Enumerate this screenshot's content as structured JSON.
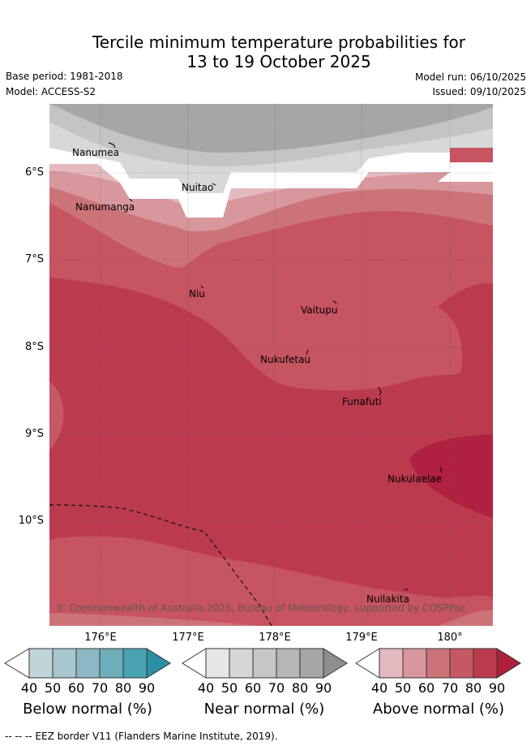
{
  "title": {
    "line1": "Tercile minimum temperature probabilities for",
    "line2": "13 to 19 October 2025"
  },
  "meta": {
    "base_period": "Base period: 1981-2018",
    "model": "Model: ACCESS-S2",
    "model_run": "Model run: 06/10/2025",
    "issued": "Issued: 09/10/2025"
  },
  "map": {
    "lat_labels": [
      "6°S",
      "7°S",
      "8°S",
      "9°S",
      "10°S"
    ],
    "lon_labels": [
      "176°E",
      "177°E",
      "178°E",
      "179°E",
      "180°"
    ],
    "places": [
      "Nanumea",
      "Nuitao",
      "Nanumanga",
      "Niu",
      "Vaitupu",
      "Nukufetau",
      "Funafuti",
      "Nukulaelae",
      "Nuilakita"
    ],
    "copyright": "© Commonwealth of Australia 2025, Bureau of Meteorology, supported by COSPPac"
  },
  "colorbars": [
    {
      "label": "Below normal (%)",
      "ticks": [
        "40",
        "50",
        "60",
        "70",
        "80",
        "90"
      ],
      "colors": [
        "#c0d4da",
        "#a8c6cd",
        "#8cb8c3",
        "#6eaebb",
        "#4aa3b3",
        "#2a8fa3"
      ]
    },
    {
      "label": "Near normal (%)",
      "ticks": [
        "40",
        "50",
        "60",
        "70",
        "80",
        "90"
      ],
      "colors": [
        "#e6e6e6",
        "#d6d6d6",
        "#c6c6c6",
        "#b6b6b6",
        "#a6a6a6",
        "#8e8e8e"
      ]
    },
    {
      "label": "Above normal (%)",
      "ticks": [
        "40",
        "50",
        "60",
        "70",
        "80",
        "90"
      ],
      "colors": [
        "#e4bac0",
        "#d8969d",
        "#cc7378",
        "#c45863",
        "#bb3b4d",
        "#ad1f3b"
      ]
    }
  ],
  "footer": "--  --  -- EEZ border V11 (Flanders Marine Institute, 2019)."
}
